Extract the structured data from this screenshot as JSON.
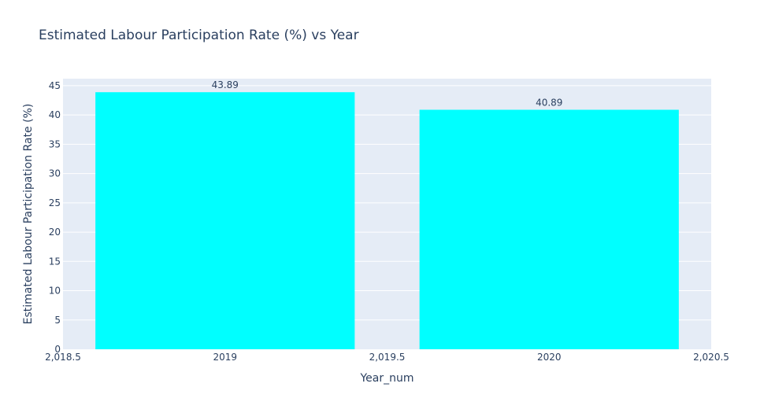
{
  "chart_data": {
    "type": "bar",
    "title": "Estimated Labour Participation Rate (%) vs Year",
    "xlabel": "Year_num",
    "ylabel": "Estimated Labour Participation Rate (%)",
    "x": [
      2019,
      2020
    ],
    "values": [
      43.89,
      40.89
    ],
    "data_labels": [
      "43.89",
      "40.89"
    ],
    "bar_width": 0.8,
    "xlim": [
      2018.5,
      2020.5
    ],
    "ylim": [
      0,
      46.2
    ],
    "x_ticks": [
      2018.5,
      2019,
      2019.5,
      2020,
      2020.5
    ],
    "x_tick_labels": [
      "2,018.5",
      "2019",
      "2,019.5",
      "2020",
      "2,020.5"
    ],
    "y_ticks": [
      0,
      5,
      10,
      15,
      20,
      25,
      30,
      35,
      40,
      45
    ],
    "y_tick_labels": [
      "0",
      "5",
      "10",
      "15",
      "20",
      "25",
      "30",
      "35",
      "40",
      "45"
    ],
    "grid": true,
    "colors": {
      "bar": "#00ffff",
      "plot_bg": "#e5ecf6",
      "grid": "#ffffff",
      "text": "#2a3f5f"
    }
  }
}
